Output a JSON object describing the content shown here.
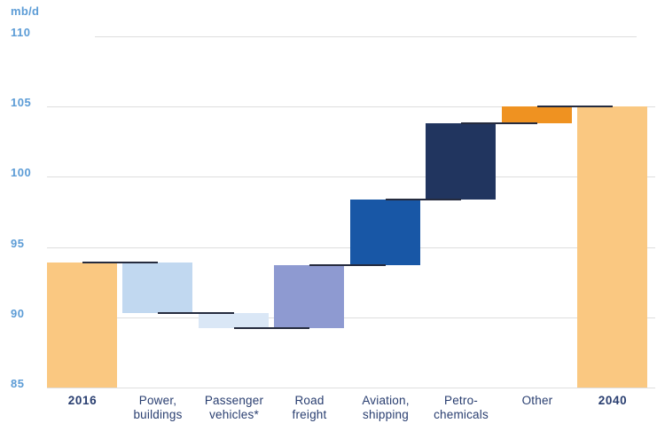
{
  "chart_data": {
    "type": "bar",
    "subtype": "waterfall",
    "title": "",
    "unit_label": "mb/d",
    "xlabel": "",
    "ylabel": "mb/d",
    "ylim": [
      85,
      110
    ],
    "yticks": [
      85,
      90,
      95,
      100,
      105,
      110
    ],
    "grid": true,
    "legend": false,
    "categories": [
      {
        "label": "2016",
        "lines": [
          "2016"
        ],
        "role": "total",
        "start": 85,
        "end": 93.9,
        "value": 93.9,
        "change": null,
        "color": "#FAC881",
        "bold": true
      },
      {
        "label": "Power, buildings",
        "lines": [
          "Power,",
          "buildings"
        ],
        "role": "decrease",
        "start": 93.9,
        "end": 90.3,
        "value": null,
        "change": -3.6,
        "color": "#C1D8F0",
        "bold": false
      },
      {
        "label": "Passenger vehicles*",
        "lines": [
          "Passenger",
          "vehicles*"
        ],
        "role": "decrease",
        "start": 90.3,
        "end": 89.2,
        "value": null,
        "change": -1.1,
        "color": "#DAE7F6",
        "bold": false
      },
      {
        "label": "Road freight",
        "lines": [
          "Road",
          "freight"
        ],
        "role": "increase",
        "start": 89.2,
        "end": 93.7,
        "value": null,
        "change": 4.5,
        "color": "#8E9AD1",
        "bold": false
      },
      {
        "label": "Aviation, shipping",
        "lines": [
          "Aviation,",
          "shipping"
        ],
        "role": "increase",
        "start": 93.7,
        "end": 98.4,
        "value": null,
        "change": 4.7,
        "color": "#1857A6",
        "bold": false
      },
      {
        "label": "Petro-chemicals",
        "lines": [
          "Petro-",
          "chemicals"
        ],
        "role": "increase",
        "start": 98.4,
        "end": 103.8,
        "value": null,
        "change": 5.4,
        "color": "#21355F",
        "bold": false
      },
      {
        "label": "Other",
        "lines": [
          "Other"
        ],
        "role": "increase",
        "start": 103.8,
        "end": 105.0,
        "value": null,
        "change": 1.2,
        "color": "#EF9221",
        "bold": false
      },
      {
        "label": "2040",
        "lines": [
          "2040"
        ],
        "role": "total",
        "start": 85,
        "end": 105.0,
        "value": 105.0,
        "change": null,
        "color": "#FAC881",
        "bold": true
      }
    ],
    "colors": {
      "tick_label": "#5C9CD6",
      "category_label": "#293E70",
      "gridline": "#DEDEDE",
      "connector": "#252B3E",
      "background": "#FFFFFF"
    }
  }
}
